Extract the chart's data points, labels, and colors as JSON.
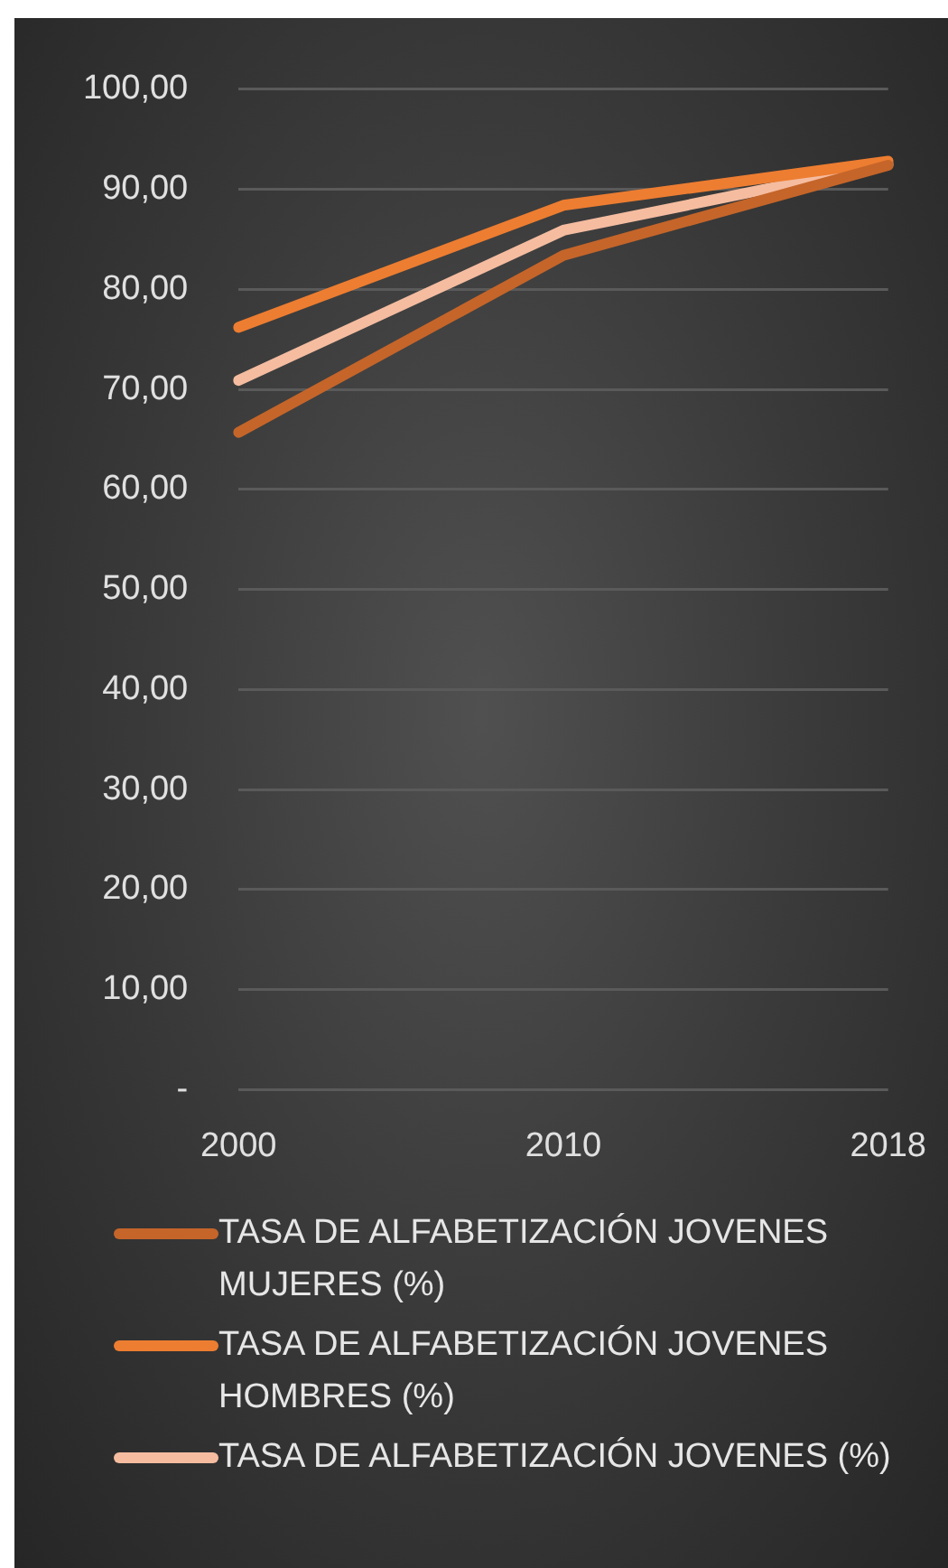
{
  "chart_data": {
    "type": "line",
    "categories": [
      "2000",
      "2010",
      "2018"
    ],
    "series": [
      {
        "name": "TASA DE ALFABETIZACIÓN JOVENES MUJERES (%)",
        "color": "#c5652a",
        "values": [
          65.7,
          83.4,
          92.4
        ]
      },
      {
        "name": "TASA DE ALFABETIZACIÓN JOVENES HOMBRES (%)",
        "color": "#ed7d31",
        "values": [
          76.2,
          88.4,
          92.8
        ]
      },
      {
        "name": "TASA DE ALFABETIZACIÓN JOVENES (%)",
        "color": "#f5bca0",
        "values": [
          70.9,
          85.9,
          92.5
        ]
      }
    ],
    "ylim": [
      0,
      100
    ],
    "yticks": [
      {
        "value": 0,
        "label": "-"
      },
      {
        "value": 10,
        "label": "10,00"
      },
      {
        "value": 20,
        "label": "20,00"
      },
      {
        "value": 30,
        "label": "30,00"
      },
      {
        "value": 40,
        "label": "40,00"
      },
      {
        "value": 50,
        "label": "50,00"
      },
      {
        "value": 60,
        "label": "60,00"
      },
      {
        "value": 70,
        "label": "70,00"
      },
      {
        "value": 80,
        "label": "80,00"
      },
      {
        "value": 90,
        "label": "90,00"
      },
      {
        "value": 100,
        "label": "100,00"
      }
    ],
    "grid": "y",
    "legend": "bottom",
    "marker": "none",
    "line_style": "solid"
  }
}
